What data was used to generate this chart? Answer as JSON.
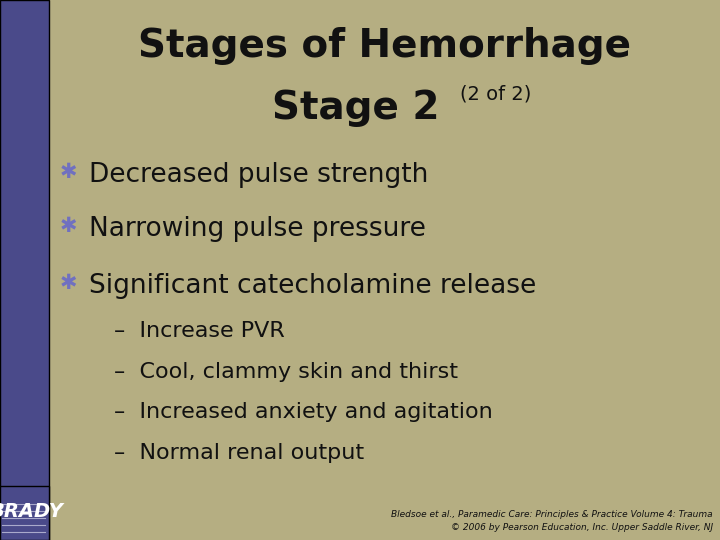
{
  "bg_color": "#b5ae82",
  "left_bar_color": "#4a4a8a",
  "title_line1": "Stages of Hemorrhage",
  "title_line2": "Stage 2",
  "title_sub": "(2 of 2)",
  "title_color": "#111111",
  "title_fontsize": 28,
  "title_sub_fontsize": 14,
  "bullet_color": "#7070c0",
  "bullet_symbol": "✱",
  "bullet_items": [
    "Decreased pulse strength",
    "Narrowing pulse pressure",
    "Significant catecholamine release"
  ],
  "sub_items": [
    "Increase PVR",
    "Cool, clammy skin and thirst",
    "Increased anxiety and agitation",
    "Normal renal output"
  ],
  "main_fontsize": 19,
  "sub_fontsize": 16,
  "text_color": "#111111",
  "footer_right1": "Bledsoe et al., Paramedic Care: Principles & Practice Volume 4: Trauma",
  "footer_right2": "© 2006 by Pearson Education, Inc. Upper Saddle River, NJ",
  "footer_fontsize": 6.5,
  "brady_fontsize": 14,
  "left_bar_width": 0.068
}
